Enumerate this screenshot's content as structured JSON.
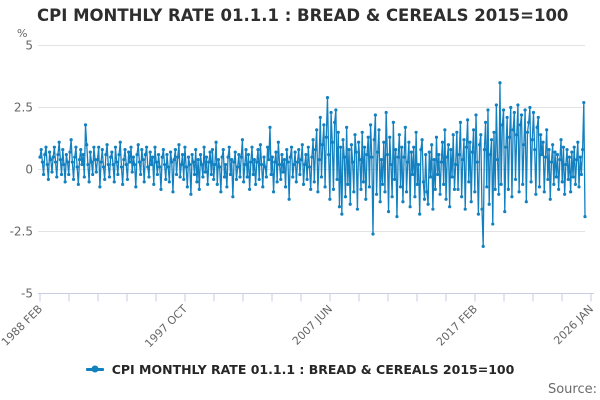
{
  "title": "CPI MONTHLY RATE 01.1.1 : BREAD & CEREALS 2015=100",
  "source_label": "Source:",
  "legend": {
    "series_label": "CPI MONTHLY RATE 01.1.1 : BREAD & CEREALS 2015=100",
    "marker": "line-dot-marker",
    "color": "#1380C0"
  },
  "y_axis": {
    "unit": "%",
    "tick_labels": [
      "5",
      "2.5",
      "0",
      "-2.5",
      "-5"
    ],
    "tick_values": [
      5,
      2.5,
      0,
      -2.5,
      -5
    ],
    "min": -5,
    "max": 5
  },
  "x_axis": {
    "tick_count": 20,
    "labels": [
      {
        "text": "1988 FEB",
        "tick": 0
      },
      {
        "text": "1997 OCT",
        "tick": 5
      },
      {
        "text": "2007 JUN",
        "tick": 10
      },
      {
        "text": "2017 FEB",
        "tick": 15
      },
      {
        "text": "2026 JAN",
        "tick": 19
      }
    ]
  },
  "colors": {
    "series": "#1380C0",
    "gridline": "#e3e3e3",
    "axis": "#c6cde2",
    "tick_text": "#666666"
  },
  "chart_data": {
    "type": "line",
    "title": "CPI MONTHLY RATE 01.1.1 : BREAD & CEREALS 2015=100",
    "xlabel": "",
    "ylabel": "%",
    "ylim": [
      -5,
      5
    ],
    "grid": true,
    "legend_position": "bottom",
    "x_start": "1988 FEB",
    "x_end": "2026 JAN",
    "frequency": "monthly",
    "x_axis_tick_labels": [
      "1988 FEB",
      "1997 OCT",
      "2007 JUN",
      "2017 FEB",
      "2026 JAN"
    ],
    "series": [
      {
        "name": "CPI MONTHLY RATE 01.1.1 : BREAD & CEREALS 2015=100",
        "color": "#1380C0",
        "marker": "circle",
        "values": [
          0.5,
          0.8,
          0.3,
          -0.2,
          0.6,
          0.9,
          0.2,
          -0.4,
          0.7,
          0.4,
          -0.1,
          0.5,
          0.9,
          0.3,
          -0.3,
          0.6,
          1.1,
          0.4,
          -0.2,
          0.8,
          0.2,
          -0.5,
          0.6,
          0.3,
          -0.2,
          0.7,
          1.2,
          0.3,
          -0.4,
          0.5,
          0.9,
          0.1,
          -0.6,
          0.4,
          0.8,
          0.2,
          0.6,
          -0.3,
          1.8,
          1.0,
          0.2,
          -0.5,
          0.7,
          0.3,
          -0.2,
          0.9,
          0.4,
          -0.1,
          0.4,
          0.9,
          -0.7,
          0.3,
          0.8,
          0.1,
          -0.4,
          0.6,
          1.0,
          0.2,
          -0.3,
          0.5,
          0.7,
          0.2,
          -0.5,
          0.9,
          0.3,
          -0.2,
          0.6,
          1.1,
          0.1,
          -0.6,
          0.4,
          0.8,
          0.2,
          -0.4,
          0.7,
          0.3,
          0.9,
          -0.1,
          0.5,
          0.2,
          -0.7,
          0.6,
          1.0,
          0.3,
          -0.2,
          0.8,
          0.4,
          -0.5,
          0.6,
          0.9,
          0.1,
          -0.3,
          0.7,
          0.2,
          0.5,
          -0.6,
          0.9,
          0.3,
          -0.2,
          0.6,
          0.1,
          -0.8,
          0.5,
          0.8,
          0.2,
          -0.4,
          0.6,
          0.1,
          -0.5,
          0.7,
          0.3,
          -0.9,
          0.4,
          0.8,
          -0.2,
          0.5,
          1.0,
          -0.3,
          0.2,
          0.6,
          -0.4,
          0.9,
          0.1,
          -0.7,
          0.5,
          0.2,
          -1.0,
          0.6,
          0.3,
          -0.2,
          0.8,
          -0.5,
          0.4,
          -0.8,
          0.6,
          0.2,
          -0.3,
          0.9,
          -0.1,
          0.5,
          -0.6,
          0.3,
          0.7,
          -0.2,
          0.8,
          -0.4,
          0.2,
          1.1,
          -0.6,
          0.4,
          0.1,
          -0.9,
          0.5,
          0.8,
          -0.3,
          0.2,
          -0.7,
          0.5,
          0.9,
          -0.2,
          0.4,
          -1.1,
          0.3,
          0.7,
          -0.4,
          0.1,
          0.6,
          -0.3,
          0.5,
          1.2,
          -0.5,
          0.2,
          0.8,
          -0.3,
          0.6,
          -0.8,
          0.3,
          0.9,
          -0.2,
          0.4,
          -0.6,
          0.3,
          0.8,
          -0.4,
          1.0,
          0.2,
          -0.7,
          0.5,
          0.1,
          -0.3,
          0.9,
          0.4,
          1.7,
          -0.2,
          0.5,
          -0.9,
          0.3,
          0.7,
          -0.5,
          1.1,
          0.2,
          -0.4,
          0.6,
          -0.1,
          0.4,
          -0.7,
          0.8,
          0.3,
          -1.2,
          0.5,
          0.9,
          -0.3,
          0.2,
          0.7,
          -0.5,
          0.3,
          0.8,
          -0.2,
          0.4,
          1.0,
          -0.6,
          0.2,
          0.6,
          -0.4,
          0.9,
          0.1,
          -0.8,
          0.5,
          1.2,
          -0.5,
          0.8,
          1.6,
          -0.9,
          0.4,
          2.1,
          -0.3,
          1.0,
          1.8,
          -0.7,
          1.3,
          2.9,
          0.6,
          -1.2,
          2.3,
          1.1,
          -0.8,
          1.9,
          2.4,
          -0.4,
          1.5,
          -1.5,
          0.9,
          -1.8,
          1.2,
          0.5,
          -1.1,
          1.7,
          -0.6,
          0.8,
          -1.4,
          1.0,
          0.3,
          -0.9,
          1.4,
          0.7,
          -1.6,
          1.1,
          0.4,
          -0.8,
          1.5,
          -0.5,
          0.9,
          -1.2,
          0.6,
          1.3,
          -0.7,
          1.8,
          0.5,
          -2.6,
          1.2,
          2.2,
          -1.0,
          0.7,
          1.6,
          -1.3,
          0.4,
          -0.6,
          1.1,
          -0.9,
          2.3,
          0.6,
          -1.7,
          1.3,
          0.2,
          -1.1,
          1.9,
          -0.4,
          0.8,
          -1.9,
          0.5,
          1.4,
          -0.7,
          0.9,
          -1.3,
          0.5,
          1.7,
          -0.9,
          0.3,
          1.1,
          -1.5,
          0.7,
          -0.2,
          0.9,
          -1.1,
          1.5,
          -0.6,
          0.2,
          -1.8,
          0.8,
          1.2,
          -0.5,
          -1.2,
          0.6,
          -0.9,
          -1.4,
          0.7,
          -0.3,
          1.0,
          -1.6,
          0.4,
          -0.8,
          1.3,
          -0.2,
          0.6,
          -1.0,
          0.3,
          1.1,
          -0.6,
          1.6,
          -1.2,
          0.5,
          1.0,
          -1.5,
          0.8,
          -0.3,
          1.4,
          -0.8,
          0.2,
          1.5,
          -0.8,
          0.6,
          1.9,
          -1.1,
          0.4,
          1.2,
          -1.6,
          0.9,
          2.0,
          -0.5,
          1.1,
          -1.3,
          0.7,
          1.6,
          -0.9,
          2.2,
          0.3,
          -1.8,
          1.0,
          1.4,
          -1.6,
          -3.1,
          0.8,
          1.9,
          -0.7,
          2.4,
          -1.4,
          0.6,
          1.2,
          -2.2,
          1.5,
          -0.8,
          2.6,
          0.4,
          -1.0,
          3.5,
          -0.6,
          1.8,
          2.4,
          -1.7,
          0.9,
          2.1,
          -0.8,
          1.3,
          2.5,
          -1.1,
          1.6,
          2.3,
          -0.4,
          1.4,
          2.6,
          -0.9,
          1.8,
          2.2,
          -0.6,
          1.0,
          2.4,
          -1.3,
          1.5,
          1.9,
          2.5,
          -0.5,
          1.2,
          2.3,
          0.8,
          -1.0,
          1.7,
          2.1,
          -0.7,
          1.4,
          0.6,
          1.1,
          -0.9,
          0.5,
          1.6,
          -0.4,
          0.8,
          -1.2,
          0.3,
          1.0,
          -0.6,
          0.7,
          -0.3,
          0.6,
          -0.8,
          0.4,
          1.2,
          -0.5,
          0.9,
          -1.0,
          0.2,
          0.8,
          -0.4,
          0.5,
          -0.9,
          0.7,
          -0.3,
          0.9,
          -0.6,
          0.4,
          1.1,
          -0.7,
          0.5,
          -0.2,
          0.8,
          2.7,
          -1.9
        ]
      }
    ]
  }
}
